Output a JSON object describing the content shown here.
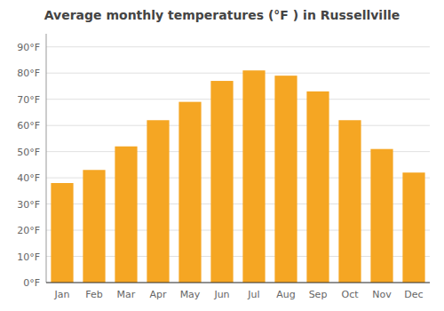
{
  "chart_data": {
    "type": "bar",
    "title": "Average monthly temperatures (°F ) in Russellville",
    "categories": [
      "Jan",
      "Feb",
      "Mar",
      "Apr",
      "May",
      "Jun",
      "Jul",
      "Aug",
      "Sep",
      "Oct",
      "Nov",
      "Dec"
    ],
    "values": [
      38,
      43,
      52,
      62,
      69,
      77,
      81,
      79,
      73,
      62,
      51,
      42
    ],
    "color": "#F5A623",
    "ylim": [
      0,
      95
    ],
    "yticks": [
      {
        "value": 0,
        "label": "0°F"
      },
      {
        "value": 10,
        "label": "10°F"
      },
      {
        "value": 20,
        "label": "20°F"
      },
      {
        "value": 30,
        "label": "30°F"
      },
      {
        "value": 40,
        "label": "40°F"
      },
      {
        "value": 50,
        "label": "50°F"
      },
      {
        "value": 60,
        "label": "60°F"
      },
      {
        "value": 70,
        "label": "70°F"
      },
      {
        "value": 80,
        "label": "80°F"
      },
      {
        "value": 90,
        "label": "90°F"
      }
    ],
    "grid": true
  }
}
